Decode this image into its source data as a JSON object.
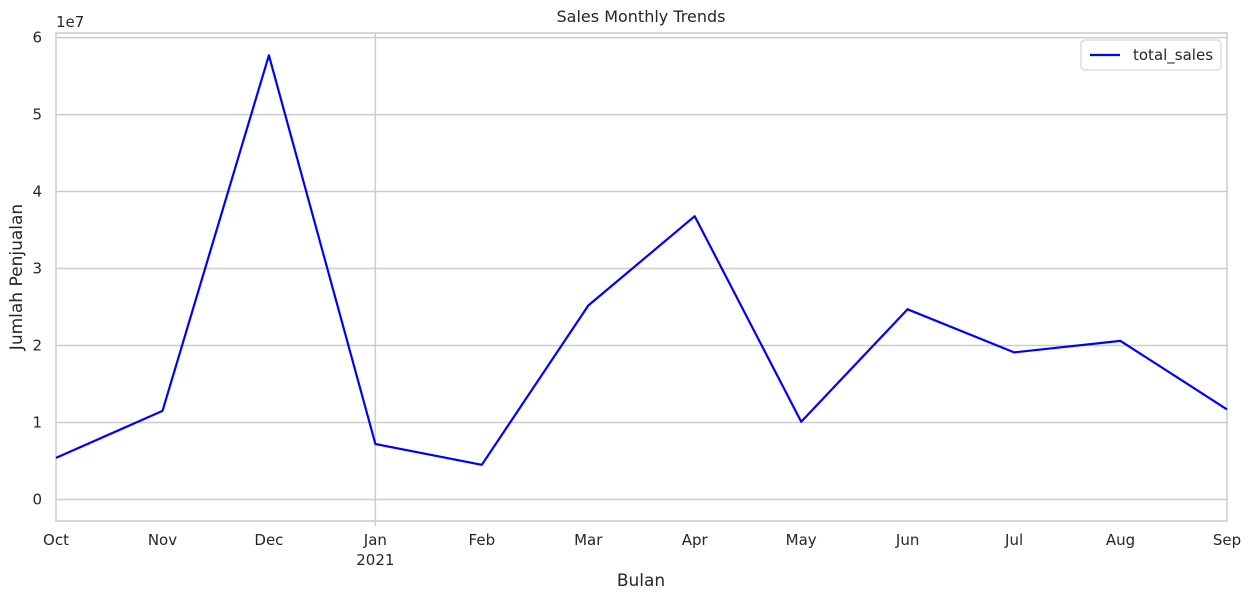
{
  "chart_data": {
    "type": "line",
    "title": "Sales Monthly Trends",
    "xlabel": "Bulan",
    "ylabel": "Jumlah Penjualan",
    "y_offset_label": "1e7",
    "x_categories": [
      "Oct",
      "Nov",
      "Dec",
      "Jan",
      "Feb",
      "Mar",
      "Apr",
      "May",
      "Jun",
      "Jul",
      "Aug",
      "Sep"
    ],
    "x_year_label": "2021",
    "y_ticks": [
      0,
      1,
      2,
      3,
      4,
      5,
      6
    ],
    "ylim": [
      -0.28,
      6.06
    ],
    "grid": true,
    "legend_position": "top-right",
    "series": [
      {
        "name": "total_sales",
        "color": "#0000ff",
        "values": [
          0.54,
          1.15,
          5.77,
          0.72,
          0.45,
          2.52,
          3.68,
          1.01,
          2.47,
          1.91,
          2.06,
          1.17
        ]
      }
    ]
  }
}
